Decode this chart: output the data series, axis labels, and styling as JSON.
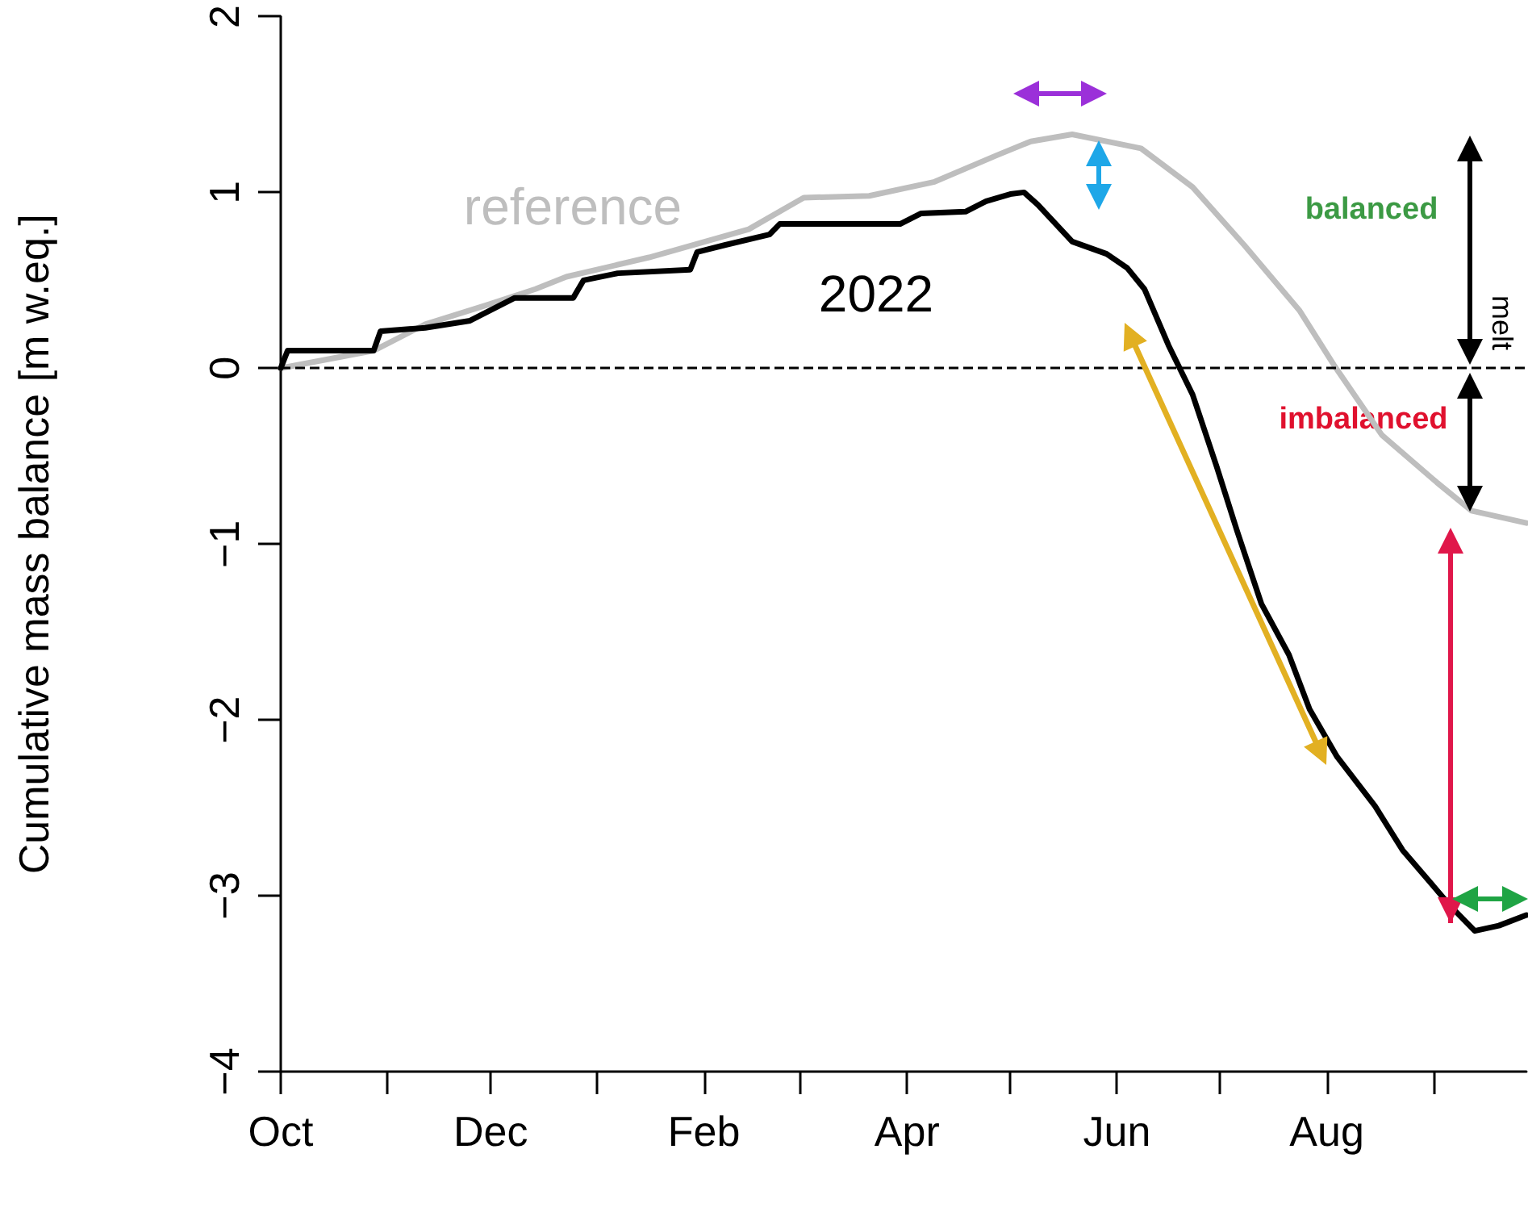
{
  "chart_data": {
    "type": "line",
    "ylabel": "Cumulative mass balance [m w.eq.]",
    "xlim": [
      "2021-10-01",
      "2022-09-28"
    ],
    "ylim": [
      -4,
      2
    ],
    "yticks": [
      -4,
      -3,
      -2,
      -1,
      0,
      1,
      2
    ],
    "xticks": [
      {
        "value": "2021-10-01",
        "label": "Oct"
      },
      {
        "value": "2021-11-01",
        "label": null
      },
      {
        "value": "2021-12-01",
        "label": "Dec"
      },
      {
        "value": "2022-01-01",
        "label": null
      },
      {
        "value": "2022-02-01",
        "label": "Feb"
      },
      {
        "value": "2022-03-01",
        "label": null
      },
      {
        "value": "2022-04-01",
        "label": "Apr"
      },
      {
        "value": "2022-05-01",
        "label": null
      },
      {
        "value": "2022-06-01",
        "label": "Jun"
      },
      {
        "value": "2022-07-01",
        "label": null
      },
      {
        "value": "2022-08-01",
        "label": "Aug"
      },
      {
        "value": "2022-09-01",
        "label": null
      }
    ],
    "grid": false,
    "legend": false,
    "marker": "none",
    "line_style": "solid",
    "series": [
      {
        "name": "reference",
        "color": "#bebebe",
        "x": [
          "2021-10-01",
          "2021-10-28",
          "2021-11-12",
          "2021-11-30",
          "2021-12-14",
          "2021-12-23",
          "2022-01-16",
          "2022-02-14",
          "2022-03-02",
          "2022-03-21",
          "2022-04-09",
          "2022-04-27",
          "2022-05-07",
          "2022-05-19",
          "2022-06-08",
          "2022-06-23",
          "2022-07-08",
          "2022-07-24",
          "2022-08-03",
          "2022-08-17",
          "2022-09-02",
          "2022-09-12",
          "2022-09-28"
        ],
        "values": [
          0,
          0.1,
          0.25,
          0.36,
          0.45,
          0.52,
          0.63,
          0.79,
          0.97,
          0.98,
          1.06,
          1.21,
          1.29,
          1.33,
          1.25,
          1.03,
          0.7,
          0.33,
          0.02,
          -0.38,
          -0.65,
          -0.81,
          -0.88
        ]
      },
      {
        "name": "2022",
        "color": "#000000",
        "x": [
          "2021-10-01",
          "2021-10-03",
          "2021-10-28",
          "2021-10-30",
          "2021-11-12",
          "2021-11-25",
          "2021-12-08",
          "2021-12-25",
          "2021-12-28",
          "2022-01-07",
          "2022-01-28",
          "2022-01-30",
          "2022-02-07",
          "2022-02-20",
          "2022-02-23",
          "2022-03-12",
          "2022-03-30",
          "2022-04-05",
          "2022-04-18",
          "2022-04-24",
          "2022-05-01",
          "2022-05-05",
          "2022-05-09",
          "2022-05-19",
          "2022-05-29",
          "2022-06-04",
          "2022-06-09",
          "2022-06-16",
          "2022-06-23",
          "2022-06-30",
          "2022-07-06",
          "2022-07-13",
          "2022-07-21",
          "2022-07-27",
          "2022-08-04",
          "2022-08-15",
          "2022-08-23",
          "2022-08-30",
          "2022-09-06",
          "2022-09-13",
          "2022-09-20",
          "2022-09-28"
        ],
        "values": [
          0,
          0.1,
          0.1,
          0.21,
          0.23,
          0.27,
          0.4,
          0.4,
          0.5,
          0.54,
          0.56,
          0.66,
          0.7,
          0.76,
          0.82,
          0.82,
          0.82,
          0.88,
          0.89,
          0.95,
          0.99,
          1.0,
          0.93,
          0.72,
          0.65,
          0.57,
          0.45,
          0.13,
          -0.15,
          -0.56,
          -0.93,
          -1.34,
          -1.63,
          -1.94,
          -2.21,
          -2.49,
          -2.74,
          -2.9,
          -3.06,
          -3.2,
          -3.17,
          -3.11
        ]
      }
    ],
    "ref_lines": [
      {
        "axis": "y",
        "value": 0,
        "color": "#000000",
        "line_style": "dashed"
      }
    ],
    "annotations": [
      "balanced",
      "imbalanced",
      "melt"
    ]
  }
}
